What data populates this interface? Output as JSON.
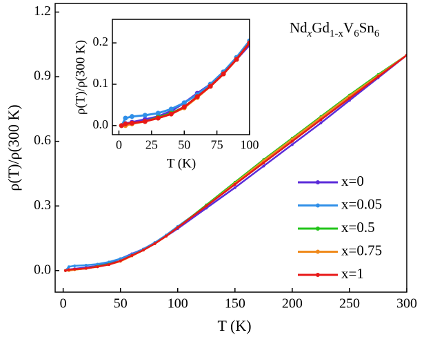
{
  "chart_data": [
    {
      "type": "line",
      "xlabel": "T (K)",
      "ylabel": "ρ(T)/ρ(300 K)",
      "annotation": [
        "Nd",
        "x",
        "Gd",
        "1-x",
        "V",
        "6",
        "Sn",
        "6"
      ],
      "xlim": [
        -7,
        300
      ],
      "ylim": [
        -0.1,
        1.24
      ],
      "xticks": [
        0,
        50,
        100,
        150,
        200,
        250,
        300
      ],
      "yticks": [
        {
          "value": 0,
          "label": "0.0"
        },
        0.3,
        0.6,
        0.9,
        1.2
      ],
      "legend": "lower right",
      "x": [
        2,
        5,
        10,
        20,
        30,
        40,
        50,
        60,
        70,
        80,
        90,
        100,
        125,
        150,
        175,
        200,
        225,
        250,
        275,
        300
      ],
      "series": [
        {
          "name": "x=0",
          "color": "#5b2bd9",
          "values": [
            0.0,
            0.005,
            0.008,
            0.015,
            0.022,
            0.035,
            0.055,
            0.078,
            0.1,
            0.13,
            0.16,
            0.195,
            0.29,
            0.385,
            0.485,
            0.585,
            0.685,
            0.79,
            0.895,
            1.0
          ]
        },
        {
          "name": "x=0.05",
          "color": "#2f8fe8",
          "values": [
            0.0,
            0.018,
            0.022,
            0.025,
            0.03,
            0.04,
            0.055,
            0.075,
            0.1,
            0.13,
            0.165,
            0.205,
            0.3,
            0.4,
            0.5,
            0.6,
            0.7,
            0.8,
            0.9,
            1.0
          ]
        },
        {
          "name": "x=0.5",
          "color": "#22c41a",
          "values": [
            0.0,
            0.002,
            0.005,
            0.01,
            0.02,
            0.03,
            0.045,
            0.07,
            0.095,
            0.125,
            0.16,
            0.2,
            0.305,
            0.41,
            0.515,
            0.615,
            0.715,
            0.815,
            0.91,
            1.0
          ]
        },
        {
          "name": "x=0.75",
          "color": "#f08a1c",
          "values": [
            0.0,
            0.0,
            0.004,
            0.01,
            0.018,
            0.028,
            0.043,
            0.068,
            0.095,
            0.125,
            0.16,
            0.2,
            0.3,
            0.405,
            0.51,
            0.61,
            0.71,
            0.81,
            0.905,
            1.0
          ]
        },
        {
          "name": "x=1",
          "color": "#e81818",
          "values": [
            0.0,
            0.004,
            0.006,
            0.01,
            0.018,
            0.028,
            0.045,
            0.07,
            0.095,
            0.125,
            0.16,
            0.2,
            0.3,
            0.4,
            0.5,
            0.6,
            0.7,
            0.8,
            0.9,
            1.0
          ]
        }
      ]
    },
    {
      "type": "inset",
      "xlabel": "T (K)",
      "ylabel": "ρ(T)/ρ(300 K)",
      "xlim": [
        -5,
        100
      ],
      "ylim": [
        -0.022,
        0.257
      ],
      "xticks": [
        0,
        25,
        50,
        75,
        100
      ],
      "yticks": [
        {
          "value": 0,
          "label": "0.0"
        },
        0.1,
        0.2
      ]
    }
  ]
}
